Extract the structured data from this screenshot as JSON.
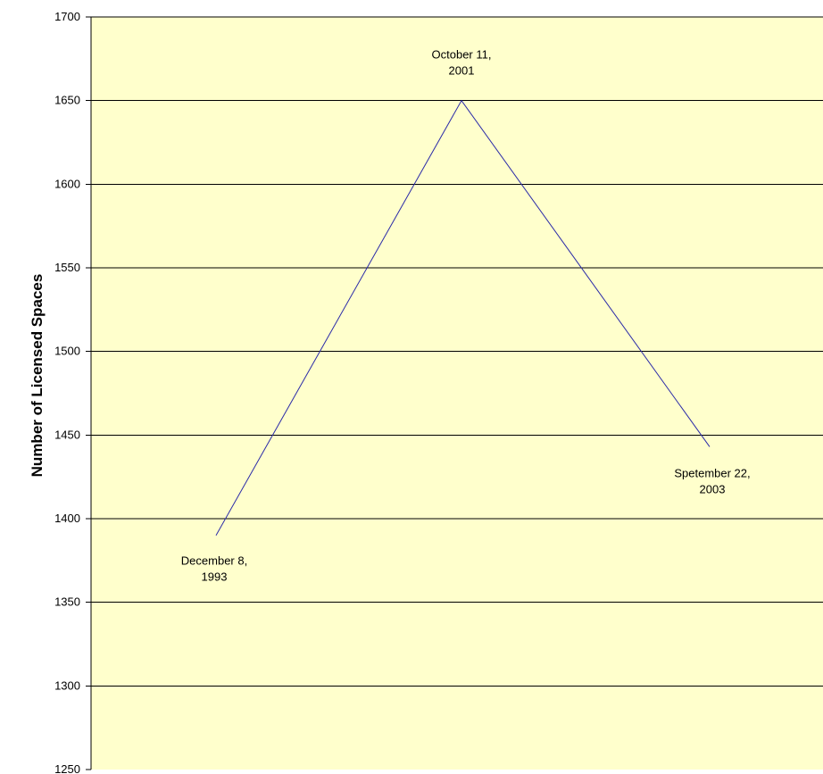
{
  "chart_data": {
    "type": "line",
    "title": "",
    "xlabel": "",
    "ylabel": "Number of Licensed Spaces",
    "ylim": [
      1250,
      1700
    ],
    "yticks": [
      1250,
      1300,
      1350,
      1400,
      1450,
      1500,
      1550,
      1600,
      1650,
      1700
    ],
    "grid": true,
    "legend": "none",
    "series": [
      {
        "points": [
          {
            "label_lines": [
              "December 8,",
              "1993"
            ],
            "y": 1390
          },
          {
            "label_lines": [
              "October 11,",
              "2001"
            ],
            "y": 1650
          },
          {
            "label_lines": [
              "Spetember 22,",
              "2003"
            ],
            "y": 1443
          }
        ]
      }
    ],
    "colors": {
      "plot_background": "#ffffcc",
      "line": "#2a2aa8",
      "grid": "#000000",
      "axis": "#000000"
    }
  }
}
